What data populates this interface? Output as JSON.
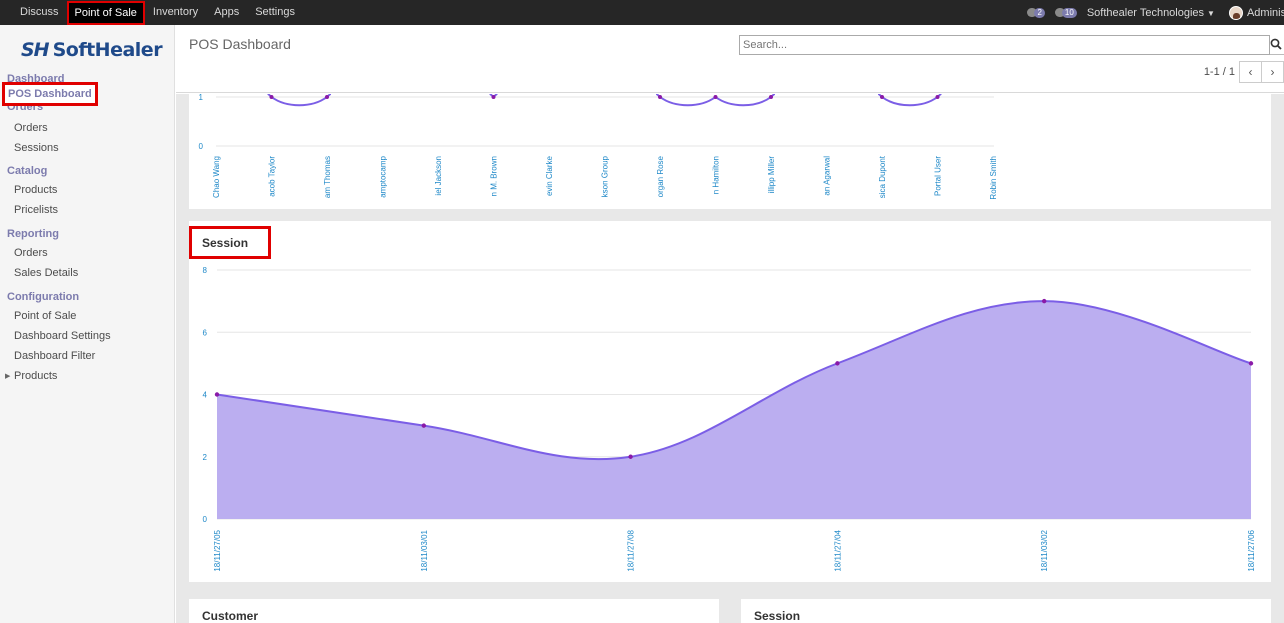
{
  "topbar": {
    "menu": [
      "Discuss",
      "Point of Sale",
      "Inventory",
      "Apps",
      "Settings"
    ],
    "active_index": 1,
    "activity_count": "2",
    "message_count": "10",
    "company": "Softhealer Technologies",
    "user": "Administrat"
  },
  "sidebar": {
    "logo_mark": "SH",
    "logo_text": "SoftHealer",
    "sections": {
      "dashboard": "Dashboard",
      "pos_dashboard": "POS Dashboard",
      "orders_head": "Orders",
      "orders": "Orders",
      "sessions": "Sessions",
      "catalog": "Catalog",
      "products": "Products",
      "pricelists": "Pricelists",
      "reporting": "Reporting",
      "rep_orders": "Orders",
      "sales_details": "Sales Details",
      "configuration": "Configuration",
      "point_of_sale": "Point of Sale",
      "dashboard_settings": "Dashboard Settings",
      "dashboard_filter": "Dashboard Filter",
      "cfg_products": "Products"
    }
  },
  "control": {
    "title": "POS Dashboard",
    "search_placeholder": "Search...",
    "pager": "1-1 / 1"
  },
  "colors": {
    "accent": "#7c7bad",
    "line": "#7b5ee6",
    "fill": "#bbaef0",
    "highlight": "#e00000",
    "tick": "#1e88c8"
  },
  "chart_data": [
    {
      "type": "line",
      "title": "",
      "categories": [
        "Chao Wang",
        "acob Taylor",
        "am Thomas",
        "amptocamp",
        "iel Jackson",
        "n M. Brown",
        "evin Clarke",
        "kson Group",
        "organ Rose",
        "n Hamilton",
        "illipp Miller",
        "an Agarwal",
        "sica Dupont",
        "Portal User",
        "Robin Smith"
      ],
      "y_ticks": [
        0,
        1
      ],
      "visible_points": [
        null,
        1,
        1,
        null,
        null,
        1,
        null,
        null,
        1,
        1,
        1,
        null,
        1,
        1,
        null
      ]
    },
    {
      "type": "area",
      "title": "Session",
      "categories": [
        "18/11/27/05",
        "18/11/03/01",
        "18/11/27/08",
        "18/11/27/04",
        "18/11/03/02",
        "18/11/27/06"
      ],
      "values": [
        4,
        3,
        2,
        5,
        7,
        5
      ],
      "ylim": [
        0,
        8
      ],
      "y_ticks": [
        0,
        2,
        4,
        6,
        8
      ],
      "grid": true
    }
  ],
  "bottom": {
    "customer_title": "Customer",
    "session_title": "Session"
  }
}
